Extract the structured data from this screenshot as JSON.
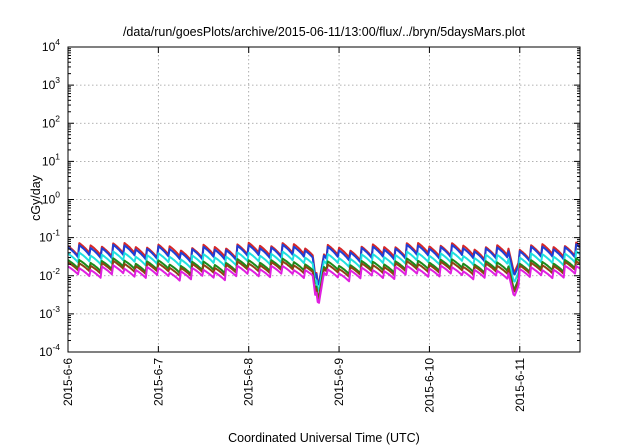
{
  "chart_data": {
    "type": "line",
    "title": "/data/run/goesPlots/archive/2015-06-11/13:00/flux/../bryn/5daysMars.plot",
    "xlabel": "Coordinated Universal Time (UTC)",
    "ylabel": "cGy/day",
    "y_scale": "log",
    "ylim": [
      0.0001,
      10000
    ],
    "y_ticks": [
      {
        "base": "10",
        "exp": "-4",
        "value": 0.0001
      },
      {
        "base": "10",
        "exp": "-3",
        "value": 0.001
      },
      {
        "base": "10",
        "exp": "-2",
        "value": 0.01
      },
      {
        "base": "10",
        "exp": "-1",
        "value": 0.1
      },
      {
        "base": "10",
        "exp": "0",
        "value": 1
      },
      {
        "base": "10",
        "exp": "1",
        "value": 10
      },
      {
        "base": "10",
        "exp": "2",
        "value": 100
      },
      {
        "base": "10",
        "exp": "3",
        "value": 1000
      },
      {
        "base": "10",
        "exp": "4",
        "value": 10000
      }
    ],
    "xlim": [
      "2015-06-06T00:00",
      "2015-06-11T16:00"
    ],
    "x_ticks": [
      "2015-6-6",
      "2015-6-7",
      "2015-6-8",
      "2015-6-9",
      "2015-6-10",
      "2015-6-11"
    ],
    "grid": true,
    "pattern_period_hours": 3,
    "dips": [
      {
        "at": "2015-06-08T18:30",
        "factor": 0.1
      },
      {
        "at": "2015-06-10T22:30",
        "factor": 0.3
      }
    ],
    "series": [
      {
        "color": "#d62728",
        "level": 0.045,
        "variation": 0.34
      },
      {
        "color": "#1f3fd6",
        "level": 0.04,
        "variation": 0.34
      },
      {
        "color": "#20e0e0",
        "level": 0.027,
        "variation": 0.3
      },
      {
        "color": "#1a8a1a",
        "level": 0.018,
        "variation": 0.28
      },
      {
        "color": "#8b4513",
        "level": 0.0155,
        "variation": 0.27
      },
      {
        "color": "#e020e0",
        "level": 0.012,
        "variation": 0.27
      }
    ]
  }
}
